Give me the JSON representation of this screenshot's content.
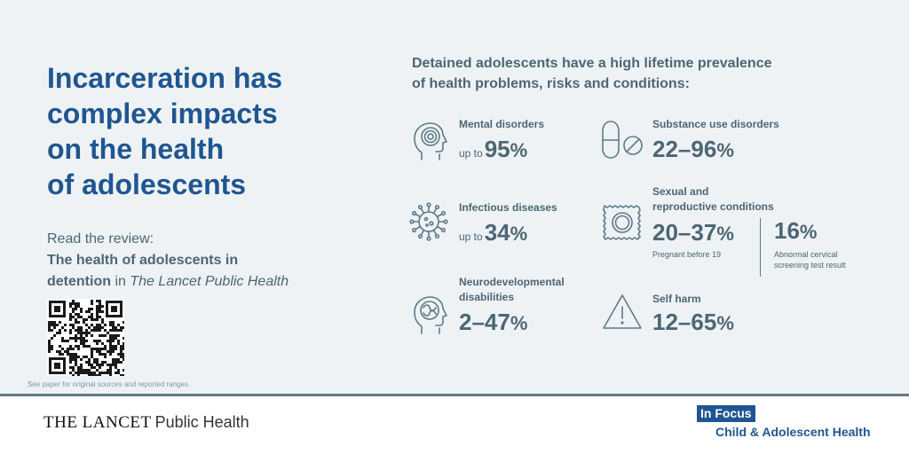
{
  "headline": {
    "lines": [
      "Incarceration has",
      "complex impacts",
      "on the health",
      "of adolescents"
    ]
  },
  "review": {
    "intro": "Read the review:",
    "title_line1": "The health of adolescents in",
    "title_line2_bold": "detention",
    "title_line2_in": " in ",
    "journal": "The Lancet Public Health"
  },
  "footnote": "See paper for original sources and reported ranges.",
  "intro": {
    "lines": [
      "Detained adolescents have a high lifetime prevalence",
      "of health problems, risks and conditions:"
    ]
  },
  "items": {
    "mental": {
      "label": "Mental disorders",
      "prefix": "up to",
      "value": "95",
      "unit": "%",
      "icon": "head-spiral-icon"
    },
    "substance": {
      "label": "Substance use disorders",
      "value": "22–96",
      "unit": "%",
      "icon": "pill-icon"
    },
    "infectious": {
      "label": "Infectious diseases",
      "prefix": "up to",
      "value": "34",
      "unit": "%",
      "icon": "virus-icon"
    },
    "sexual": {
      "label_line1": "Sexual and",
      "label_line2": "reproductive conditions",
      "value": "20–37",
      "unit": "%",
      "note": "Pregnant before 19",
      "value2": "16",
      "unit2": "%",
      "note2_line1": "Abnormal cervical",
      "note2_line2": "screening test result",
      "icon": "condom-icon"
    },
    "neuro": {
      "label_line1": "Neurodevelopmental",
      "label_line2": "disabilities",
      "value": "2–47",
      "unit": "%",
      "icon": "head-brain-icon"
    },
    "selfharm": {
      "label": "Self harm",
      "value": "12–65",
      "unit": "%",
      "icon": "warning-icon"
    }
  },
  "footer": {
    "journal_name": "THE LANCET",
    "journal_section": "Public Health",
    "badge": "In Focus",
    "badge_sub": "Child & Adolescent Health"
  },
  "colors": {
    "panel": "#eef2f4",
    "headline": "#1f5691",
    "text": "#4d6675",
    "badge": "#1f5691"
  }
}
